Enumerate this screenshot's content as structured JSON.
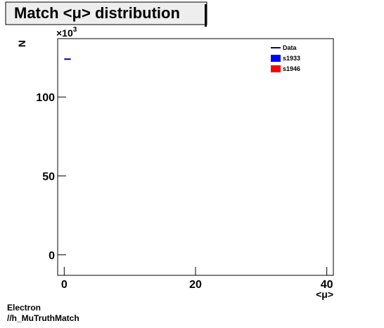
{
  "chart_data": {
    "type": "histogram",
    "title": "Match <μ> distribution",
    "x_label": "<μ>",
    "y_label": "N",
    "y_multiplier": {
      "base": "×10",
      "power": "3"
    },
    "bins": [
      0,
      1
    ],
    "series": [
      {
        "name": "Data",
        "color": "#00008b",
        "values": [
          124
        ]
      },
      {
        "name": "s1933",
        "color": "#0000ff",
        "values": [
          null
        ]
      },
      {
        "name": "s1946",
        "color": "#ff0000",
        "values": [
          null
        ]
      }
    ],
    "xlim": [
      -1,
      41
    ],
    "xticks": [
      0,
      20,
      40
    ],
    "ylim": [
      -13,
      137
    ],
    "yticks": [
      0,
      50,
      100
    ],
    "legend": "upper-right",
    "footer": [
      "Electron",
      "//h_MuTruthMatch"
    ]
  }
}
